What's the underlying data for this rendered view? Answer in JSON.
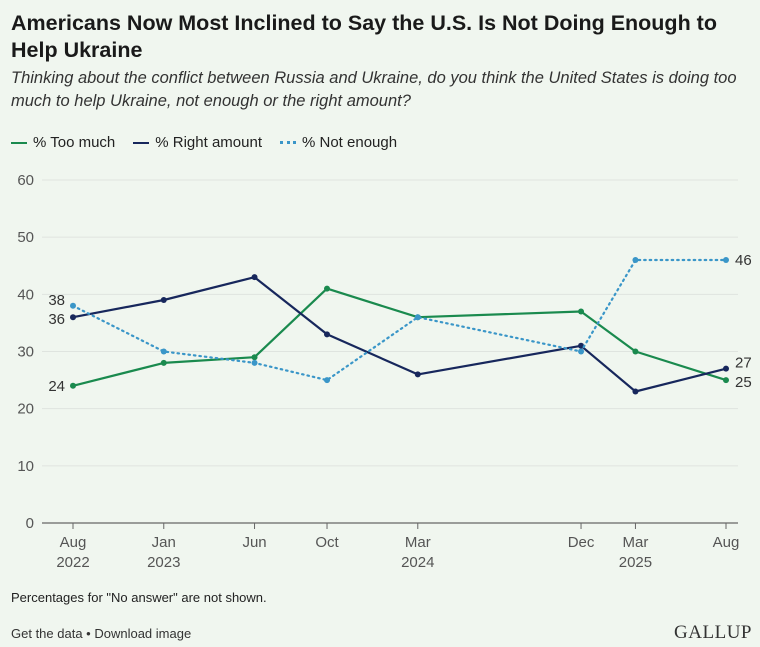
{
  "header": {
    "title": "Americans Now Most Inclined to Say the U.S. Is Not Doing Enough to Help Ukraine",
    "subtitle": "Thinking about the conflict between Russia and Ukraine, do you think the United States is doing too much to help Ukraine, not enough or the right amount?"
  },
  "legend": {
    "too_much": "% Too much",
    "right_amount": "% Right amount",
    "not_enough": "% Not enough"
  },
  "colors": {
    "too_much": "#1a8a4e",
    "right_amount": "#17275c",
    "not_enough": "#3a96c8",
    "grid": "#dfe4df",
    "axis": "#666666",
    "tick_text": "#555555"
  },
  "chart_data": {
    "type": "line",
    "title": "Americans Now Most Inclined to Say the U.S. Is Not Doing Enough to Help Ukraine",
    "xlabel": "",
    "ylabel": "",
    "ylim": [
      0,
      60
    ],
    "yticks": [
      0,
      10,
      20,
      30,
      40,
      50,
      60
    ],
    "x": [
      2022.583,
      2023.0,
      2023.417,
      2023.75,
      2024.167,
      2024.917,
      2025.167,
      2025.583
    ],
    "x_ticks": [
      {
        "pos": 2022.583,
        "month": "Aug",
        "year": "2022"
      },
      {
        "pos": 2023.0,
        "month": "Jan",
        "year": "2023"
      },
      {
        "pos": 2023.417,
        "month": "Jun",
        "year": ""
      },
      {
        "pos": 2023.75,
        "month": "Oct",
        "year": ""
      },
      {
        "pos": 2024.167,
        "month": "Mar",
        "year": "2024"
      },
      {
        "pos": 2024.917,
        "month": "Dec",
        "year": ""
      },
      {
        "pos": 2025.167,
        "month": "Mar",
        "year": "2025"
      },
      {
        "pos": 2025.583,
        "month": "Aug",
        "year": ""
      }
    ],
    "series": [
      {
        "name": "% Too much",
        "key": "too_much",
        "style": "solid",
        "values": [
          24,
          28,
          29,
          41,
          36,
          37,
          30,
          25
        ]
      },
      {
        "name": "% Right amount",
        "key": "right_amount",
        "style": "solid",
        "values": [
          36,
          39,
          43,
          33,
          26,
          31,
          23,
          27
        ]
      },
      {
        "name": "% Not enough",
        "key": "not_enough",
        "style": "dotted",
        "values": [
          38,
          30,
          28,
          25,
          36,
          30,
          46,
          46
        ]
      }
    ],
    "data_labels": {
      "start": [
        "24",
        "36",
        "38"
      ],
      "end": [
        "25",
        "27",
        "46"
      ]
    }
  },
  "footer": {
    "note": "Percentages for \"No answer\" are not shown.",
    "get_data": "Get the data",
    "separator": " • ",
    "download": "Download image",
    "brand": "GALLUP"
  }
}
